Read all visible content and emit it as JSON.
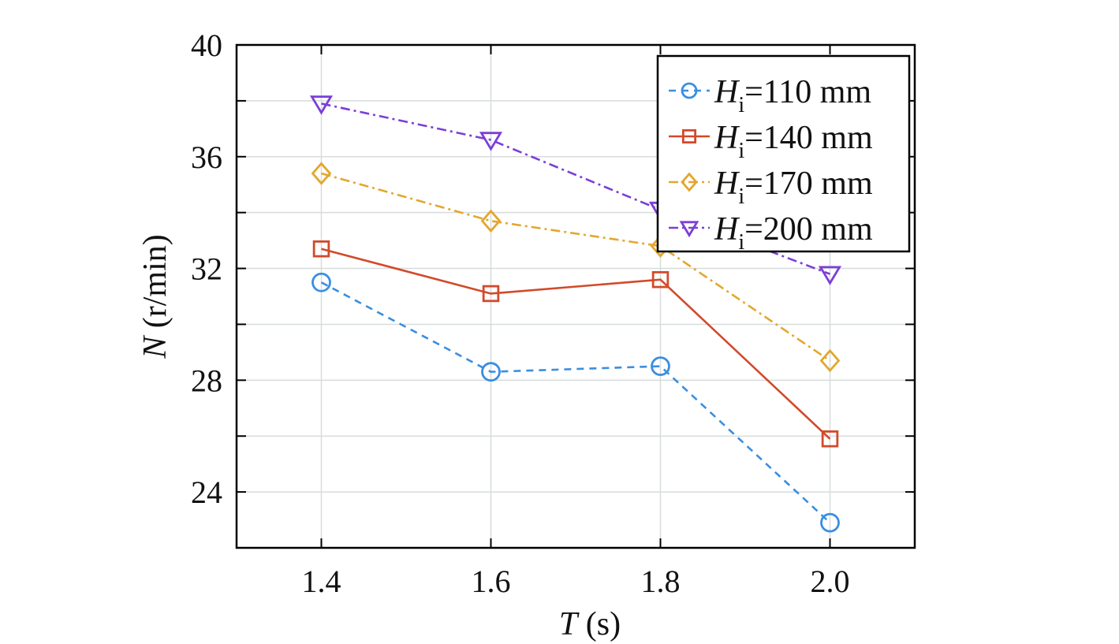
{
  "chart_data": {
    "type": "line",
    "x": [
      1.4,
      1.6,
      1.8,
      2.0
    ],
    "x_tick_labels": [
      "1.4",
      "1.6",
      "1.8",
      "2.0"
    ],
    "y_ticks": [
      24,
      28,
      32,
      36,
      40
    ],
    "y_tick_labels": [
      "24",
      "28",
      "32",
      "36",
      "40"
    ],
    "xlim": [
      1.3,
      2.1
    ],
    "ylim": [
      22,
      40
    ],
    "grid": true,
    "legend_position": "top-right",
    "xlabel": {
      "var": "T",
      "unit": " (s)"
    },
    "ylabel": {
      "var": "N",
      "unit": " (r/min)"
    },
    "series": [
      {
        "name": "Hi=110 mm",
        "legend_var": "H",
        "legend_sub": "i",
        "legend_rest": "=110 mm",
        "values": [
          31.5,
          28.3,
          28.5,
          22.9
        ],
        "color": "#3a8ee0",
        "marker": "circle",
        "dash": "dashed"
      },
      {
        "name": "Hi=140 mm",
        "legend_var": "H",
        "legend_sub": "i",
        "legend_rest": "=140 mm",
        "values": [
          32.7,
          31.1,
          31.6,
          25.9
        ],
        "color": "#d24a2a",
        "marker": "square",
        "dash": "solid"
      },
      {
        "name": "Hi=170 mm",
        "legend_var": "H",
        "legend_sub": "i",
        "legend_rest": "=170 mm",
        "values": [
          35.4,
          33.7,
          32.8,
          28.7
        ],
        "color": "#e3a72e",
        "marker": "diamond",
        "dash": "dashdot"
      },
      {
        "name": "Hi=200 mm",
        "legend_var": "H",
        "legend_sub": "i",
        "legend_rest": "=200 mm",
        "values": [
          37.9,
          36.6,
          34.1,
          31.8
        ],
        "color": "#7b3fd6",
        "marker": "triangle-down",
        "dash": "dashdot"
      }
    ]
  }
}
